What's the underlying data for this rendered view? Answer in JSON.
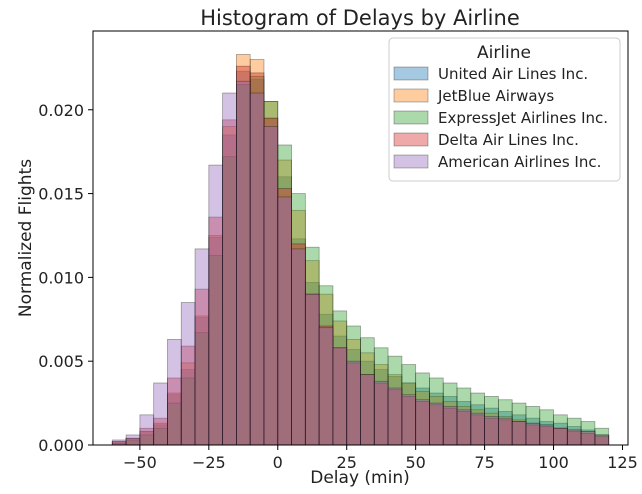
{
  "chart_data": {
    "type": "bar",
    "title": "Histogram of Delays by Airline",
    "xlabel": "Delay (min)",
    "ylabel": "Normalized Flights",
    "xlim": [
      -67,
      127
    ],
    "ylim": [
      0,
      0.0247
    ],
    "bin_width": 5,
    "x_bin_starts": [
      -60,
      -55,
      -50,
      -45,
      -40,
      -35,
      -30,
      -25,
      -20,
      -15,
      -10,
      -5,
      0,
      5,
      10,
      15,
      20,
      25,
      30,
      35,
      40,
      45,
      50,
      55,
      60,
      65,
      70,
      75,
      80,
      85,
      90,
      95,
      100,
      105,
      110,
      115
    ],
    "x_ticks": [
      -50,
      -25,
      0,
      25,
      50,
      75,
      100,
      125
    ],
    "x_tick_labels": [
      "−50",
      "−25",
      "0",
      "25",
      "50",
      "75",
      "100",
      "125"
    ],
    "y_ticks": [
      0.0,
      0.005,
      0.01,
      0.015,
      0.02
    ],
    "y_tick_labels": [
      "0.000",
      "0.005",
      "0.010",
      "0.015",
      "0.020"
    ],
    "grid": false,
    "legend_title": "Airline",
    "legend_position": "top-right",
    "series": [
      {
        "name": "United Air Lines Inc.",
        "color": "#1f77b4",
        "values": [
          0.0002,
          0.0004,
          0.0008,
          0.0012,
          0.003,
          0.0045,
          0.0076,
          0.0124,
          0.0185,
          0.0223,
          0.0218,
          0.0195,
          0.016,
          0.0123,
          0.0097,
          0.0078,
          0.0065,
          0.0057,
          0.005,
          0.0045,
          0.0041,
          0.0037,
          0.0034,
          0.0031,
          0.0029,
          0.0026,
          0.0024,
          0.0022,
          0.002,
          0.0018,
          0.0016,
          0.0014,
          0.0013,
          0.0011,
          0.0009,
          0.0006
        ]
      },
      {
        "name": "JetBlue Airways",
        "color": "#ff7f0e",
        "values": [
          0.0002,
          0.0004,
          0.0008,
          0.0013,
          0.0031,
          0.0049,
          0.0077,
          0.0125,
          0.019,
          0.0233,
          0.023,
          0.0205,
          0.017,
          0.014,
          0.011,
          0.009,
          0.0074,
          0.0063,
          0.0055,
          0.0048,
          0.0042,
          0.0037,
          0.0032,
          0.0029,
          0.0026,
          0.0023,
          0.0021,
          0.0019,
          0.0017,
          0.0015,
          0.0013,
          0.0012,
          0.001,
          0.0009,
          0.0008,
          0.0006
        ]
      },
      {
        "name": "ExpressJet Airlines Inc.",
        "color": "#2ca02c",
        "values": [
          0.0001,
          0.0003,
          0.0006,
          0.001,
          0.0025,
          0.004,
          0.0067,
          0.0113,
          0.0172,
          0.0215,
          0.022,
          0.0205,
          0.0179,
          0.015,
          0.0118,
          0.0095,
          0.008,
          0.0071,
          0.0064,
          0.0058,
          0.0053,
          0.0048,
          0.0043,
          0.004,
          0.0037,
          0.0034,
          0.0031,
          0.0029,
          0.0027,
          0.0025,
          0.0023,
          0.0021,
          0.0018,
          0.0016,
          0.0014,
          0.001
        ]
      },
      {
        "name": "Delta Air Lines Inc.",
        "color": "#d62728",
        "values": [
          0.0002,
          0.0004,
          0.001,
          0.0016,
          0.004,
          0.0059,
          0.0093,
          0.0136,
          0.0194,
          0.0226,
          0.0222,
          0.0195,
          0.0153,
          0.012,
          0.009,
          0.0071,
          0.0058,
          0.0049,
          0.0042,
          0.0037,
          0.0033,
          0.0029,
          0.0026,
          0.0024,
          0.0022,
          0.002,
          0.0018,
          0.0016,
          0.0015,
          0.0014,
          0.0012,
          0.0011,
          0.001,
          0.0008,
          0.0007,
          0.0005
        ]
      },
      {
        "name": "American Airlines Inc.",
        "color": "#9467bd",
        "values": [
          0.0003,
          0.0006,
          0.0018,
          0.0037,
          0.0063,
          0.0085,
          0.0117,
          0.0167,
          0.021,
          0.0217,
          0.021,
          0.019,
          0.0148,
          0.0117,
          0.009,
          0.007,
          0.0058,
          0.005,
          0.0042,
          0.0038,
          0.0034,
          0.003,
          0.0027,
          0.0025,
          0.0023,
          0.0021,
          0.0019,
          0.0017,
          0.0016,
          0.0014,
          0.0013,
          0.0012,
          0.001,
          0.0009,
          0.0008,
          0.0006
        ]
      }
    ]
  }
}
